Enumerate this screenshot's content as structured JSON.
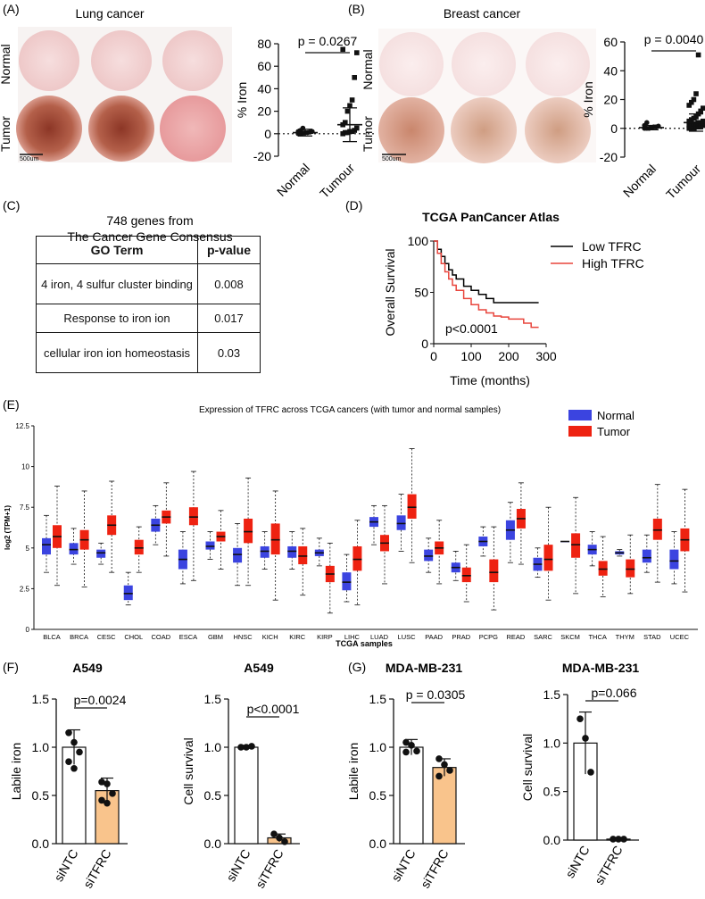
{
  "panel_labels": {
    "A": "(A)",
    "B": "(B)",
    "C": "(C)",
    "D": "(D)",
    "E": "(E)",
    "F": "(F)",
    "G": "(G)"
  },
  "panelA": {
    "title": "Lung cancer",
    "row_labels": [
      "Normal",
      "Tumor"
    ],
    "scale_bar": "500um"
  },
  "panelB": {
    "title": "Breast cancer",
    "row_labels": [
      "Normal",
      "Tumor"
    ],
    "scale_bar": "500um"
  },
  "panelC": {
    "heading_lines": [
      "748 genes from",
      "The Cancer Gene Consensus"
    ],
    "columns": [
      "GO Term",
      "p-value"
    ],
    "rows": [
      {
        "term": "4 iron, 4 sulfur cluster binding",
        "p": "0.008"
      },
      {
        "term": "Response to iron ion",
        "p": "0.017"
      },
      {
        "term": "cellular iron ion homeostasis",
        "p": "0.03"
      }
    ]
  },
  "chart_data": [
    {
      "id": "A_scatter",
      "type": "scatter",
      "categories": [
        "Normal",
        "Tumour"
      ],
      "ylabel": "% Iron",
      "ylim": [
        -20,
        80
      ],
      "yticks": [
        -20,
        0,
        20,
        40,
        60,
        80
      ],
      "pvalue": "p = 0.0267",
      "series": [
        {
          "name": "Normal",
          "mean": 1,
          "sd": 3,
          "points": [
            0,
            0,
            0.5,
            1,
            1,
            1.5,
            2,
            2,
            3,
            5
          ]
        },
        {
          "name": "Tumour",
          "mean": 8,
          "sd": 15,
          "points": [
            0,
            1,
            1,
            2,
            2,
            3,
            5,
            8,
            10,
            20,
            25,
            30,
            50,
            72,
            75
          ]
        }
      ]
    },
    {
      "id": "B_scatter",
      "type": "scatter",
      "categories": [
        "Normal",
        "Tumour"
      ],
      "ylabel": "% Iron",
      "ylim": [
        -20,
        60
      ],
      "yticks": [
        -20,
        0,
        20,
        40,
        60
      ],
      "pvalue": "p = 0.0040",
      "series": [
        {
          "name": "Normal",
          "mean": 0.5,
          "sd": 1.5,
          "points": [
            0,
            0,
            0,
            0.5,
            1,
            1,
            1.5,
            2,
            4
          ]
        },
        {
          "name": "Tumour",
          "mean": 4,
          "sd": 6,
          "points": [
            0,
            0,
            0,
            1,
            1,
            1,
            2,
            2,
            2,
            3,
            3,
            4,
            4,
            5,
            5,
            6,
            7,
            8,
            10,
            12,
            14,
            16,
            18,
            20,
            24,
            51
          ]
        }
      ]
    },
    {
      "id": "D_km",
      "type": "line",
      "title": "TCGA  PanCancer Atlas",
      "xlabel": "Time (months)",
      "ylabel": "Overall Survival",
      "xlim": [
        0,
        300
      ],
      "ylim": [
        0,
        100
      ],
      "xticks": [
        0,
        100,
        200,
        300
      ],
      "yticks": [
        0,
        50,
        100
      ],
      "pvalue": "p<0.0001",
      "series": [
        {
          "name": "Low TFRC",
          "color": "#000000",
          "x": [
            0,
            10,
            20,
            30,
            40,
            50,
            60,
            80,
            100,
            120,
            140,
            160,
            200,
            280
          ],
          "y": [
            100,
            92,
            85,
            78,
            72,
            67,
            63,
            56,
            52,
            48,
            44,
            40,
            40,
            40
          ]
        },
        {
          "name": "High TFRC",
          "color": "#e8453c",
          "x": [
            0,
            10,
            20,
            30,
            40,
            50,
            60,
            80,
            100,
            120,
            140,
            160,
            180,
            200,
            220,
            240,
            260,
            280
          ],
          "y": [
            100,
            88,
            78,
            70,
            63,
            57,
            52,
            44,
            38,
            33,
            30,
            27,
            26,
            24,
            24,
            20,
            16,
            16
          ]
        }
      ]
    },
    {
      "id": "E_box",
      "type": "box",
      "title": "Expression of TFRC across TCGA cancers (with tumor and normal samples)",
      "xlabel": "TCGA samples",
      "ylabel": "log2 (TPM+1)",
      "ylim": [
        0,
        12.5
      ],
      "yticks": [
        0,
        2.5,
        5,
        7.5,
        10,
        12.5
      ],
      "legend": [
        {
          "name": "Normal",
          "color": "#3b44e0"
        },
        {
          "name": "Tumor",
          "color": "#ee2211"
        }
      ],
      "categories": [
        "BLCA",
        "BRCA",
        "CESC",
        "CHOL",
        "COAD",
        "ESCA",
        "GBM",
        "HNSC",
        "KICH",
        "KIRC",
        "KIRP",
        "LIHC",
        "LUAD",
        "LUSC",
        "PAAD",
        "PRAD",
        "PCPG",
        "READ",
        "SARC",
        "SKCM",
        "THCA",
        "THYM",
        "STAD",
        "UCEC"
      ],
      "normal": [
        [
          3.5,
          4.6,
          5.2,
          5.6,
          7.0
        ],
        [
          4.0,
          4.6,
          4.9,
          5.3,
          6.2
        ],
        [
          4.0,
          4.4,
          4.7,
          4.9,
          5.3
        ],
        [
          1.5,
          1.8,
          2.2,
          2.7,
          3.5
        ],
        [
          5.2,
          6.0,
          6.4,
          6.8,
          7.6
        ],
        [
          2.8,
          3.7,
          4.3,
          4.9,
          6.0
        ],
        [
          4.3,
          4.9,
          5.1,
          5.4,
          6.0
        ],
        [
          2.7,
          4.1,
          4.6,
          5.0,
          6.5
        ],
        [
          3.7,
          4.4,
          4.8,
          5.1,
          6.0
        ],
        [
          3.7,
          4.4,
          4.8,
          5.1,
          6.0
        ],
        [
          3.9,
          4.5,
          4.7,
          4.9,
          5.6
        ],
        [
          1.7,
          2.4,
          2.9,
          3.5,
          4.6
        ],
        [
          5.2,
          6.3,
          6.6,
          6.9,
          7.6
        ],
        [
          4.8,
          6.1,
          6.5,
          7.0,
          8.3
        ],
        [
          3.5,
          4.2,
          4.5,
          4.9,
          5.6
        ],
        [
          3.0,
          3.5,
          3.8,
          4.1,
          4.8
        ],
        [
          4.5,
          5.1,
          5.4,
          5.7,
          6.3
        ],
        [
          4.1,
          5.5,
          6.1,
          6.7,
          7.8
        ],
        [
          3.2,
          3.6,
          4.0,
          4.4,
          5.0
        ],
        [
          5.4,
          5.4,
          5.4,
          5.4,
          5.4
        ],
        [
          3.9,
          4.6,
          4.9,
          5.2,
          6.0
        ],
        [
          4.5,
          4.6,
          4.7,
          4.8,
          4.9
        ],
        [
          3.5,
          4.1,
          4.4,
          4.9,
          5.8
        ],
        [
          2.8,
          3.7,
          4.2,
          4.9,
          6.0
        ]
      ],
      "tumor": [
        [
          2.7,
          5.0,
          5.7,
          6.4,
          8.8
        ],
        [
          2.6,
          4.9,
          5.5,
          6.1,
          8.5
        ],
        [
          3.5,
          5.8,
          6.4,
          7.0,
          9.1
        ],
        [
          3.5,
          4.6,
          5.0,
          5.5,
          6.3
        ],
        [
          4.5,
          6.5,
          6.9,
          7.3,
          9.0
        ],
        [
          3.0,
          6.4,
          6.9,
          7.5,
          9.7
        ],
        [
          3.7,
          5.4,
          5.7,
          6.0,
          7.3
        ],
        [
          2.7,
          5.3,
          6.0,
          6.8,
          9.3
        ],
        [
          1.8,
          4.6,
          5.5,
          6.5,
          8.5
        ],
        [
          2.1,
          4.0,
          4.5,
          5.1,
          6.2
        ],
        [
          1.0,
          2.9,
          3.4,
          3.9,
          5.3
        ],
        [
          1.5,
          3.6,
          4.3,
          5.1,
          6.7
        ],
        [
          2.8,
          4.8,
          5.3,
          5.8,
          7.6
        ],
        [
          4.1,
          6.8,
          7.5,
          8.3,
          11.1
        ],
        [
          2.8,
          4.6,
          5.0,
          5.4,
          6.7
        ],
        [
          1.7,
          2.9,
          3.3,
          3.8,
          5.2
        ],
        [
          1.2,
          2.9,
          3.5,
          4.3,
          6.3
        ],
        [
          4.0,
          6.2,
          6.8,
          7.4,
          9.0
        ],
        [
          1.8,
          3.6,
          4.3,
          5.2,
          7.5
        ],
        [
          2.2,
          4.4,
          5.2,
          5.9,
          8.1
        ],
        [
          2.0,
          3.3,
          3.7,
          4.2,
          5.7
        ],
        [
          2.2,
          3.2,
          3.7,
          4.3,
          5.8
        ],
        [
          2.9,
          5.5,
          6.1,
          6.8,
          8.9
        ],
        [
          2.3,
          4.8,
          5.5,
          6.2,
          8.6
        ]
      ]
    },
    {
      "id": "F_labile",
      "type": "bar",
      "title": "A549",
      "categories": [
        "siNTC",
        "siTFRC"
      ],
      "ylabel": "Labile iron",
      "ylim": [
        0,
        1.5
      ],
      "yticks": [
        "0.0",
        "0.5",
        "1.0",
        "1.5"
      ],
      "values": [
        1.0,
        0.55
      ],
      "sd": [
        0.18,
        0.13
      ],
      "pvalue": "p=0.0024",
      "points": [
        [
          1.15,
          1.05,
          0.95,
          0.85,
          0.78
        ],
        [
          0.64,
          0.62,
          0.52,
          0.45,
          0.42
        ]
      ],
      "colors": [
        "#ffffff",
        "#f9c48c"
      ]
    },
    {
      "id": "F_survival",
      "type": "bar",
      "title": "A549",
      "categories": [
        "siNTC",
        "siTFRC"
      ],
      "ylabel": "Cell survival",
      "ylim": [
        0,
        1.5
      ],
      "yticks": [
        "0.0",
        "0.5",
        "1.0",
        "1.5"
      ],
      "values": [
        1.0,
        0.06
      ],
      "sd": [
        0.02,
        0.04
      ],
      "pvalue": "p<0.0001",
      "points": [
        [
          1.0,
          1.0,
          1.01
        ],
        [
          0.1,
          0.06,
          0.02
        ]
      ],
      "colors": [
        "#ffffff",
        "#f9c48c"
      ]
    },
    {
      "id": "G_labile",
      "type": "bar",
      "title": "MDA-MB-231",
      "categories": [
        "siNTC",
        "siTFRC"
      ],
      "ylabel": "Labile iron",
      "ylim": [
        0,
        1.5
      ],
      "yticks": [
        "0.0",
        "0.5",
        "1.0",
        "1.5"
      ],
      "values": [
        1.0,
        0.79
      ],
      "sd": [
        0.08,
        0.09
      ],
      "pvalue": "p = 0.0305",
      "points": [
        [
          1.05,
          1.02,
          0.96,
          0.95
        ],
        [
          0.88,
          0.82,
          0.76,
          0.7
        ]
      ],
      "colors": [
        "#ffffff",
        "#f9c48c"
      ]
    },
    {
      "id": "G_survival",
      "type": "bar",
      "title": "MDA-MB-231",
      "categories": [
        "siNTC",
        "siTFRC"
      ],
      "ylabel": "Cell survival",
      "ylim": [
        0,
        1.5
      ],
      "yticks": [
        "0.0",
        "0.5",
        "1.0",
        "1.5"
      ],
      "values": [
        1.0,
        0.01
      ],
      "sd": [
        0.32,
        0.01
      ],
      "pvalue": "p=0.066",
      "points": [
        [
          1.25,
          1.05,
          0.7
        ],
        [
          0.01,
          0.01,
          0.01
        ]
      ],
      "colors": [
        "#ffffff",
        "#f9c48c"
      ]
    }
  ]
}
